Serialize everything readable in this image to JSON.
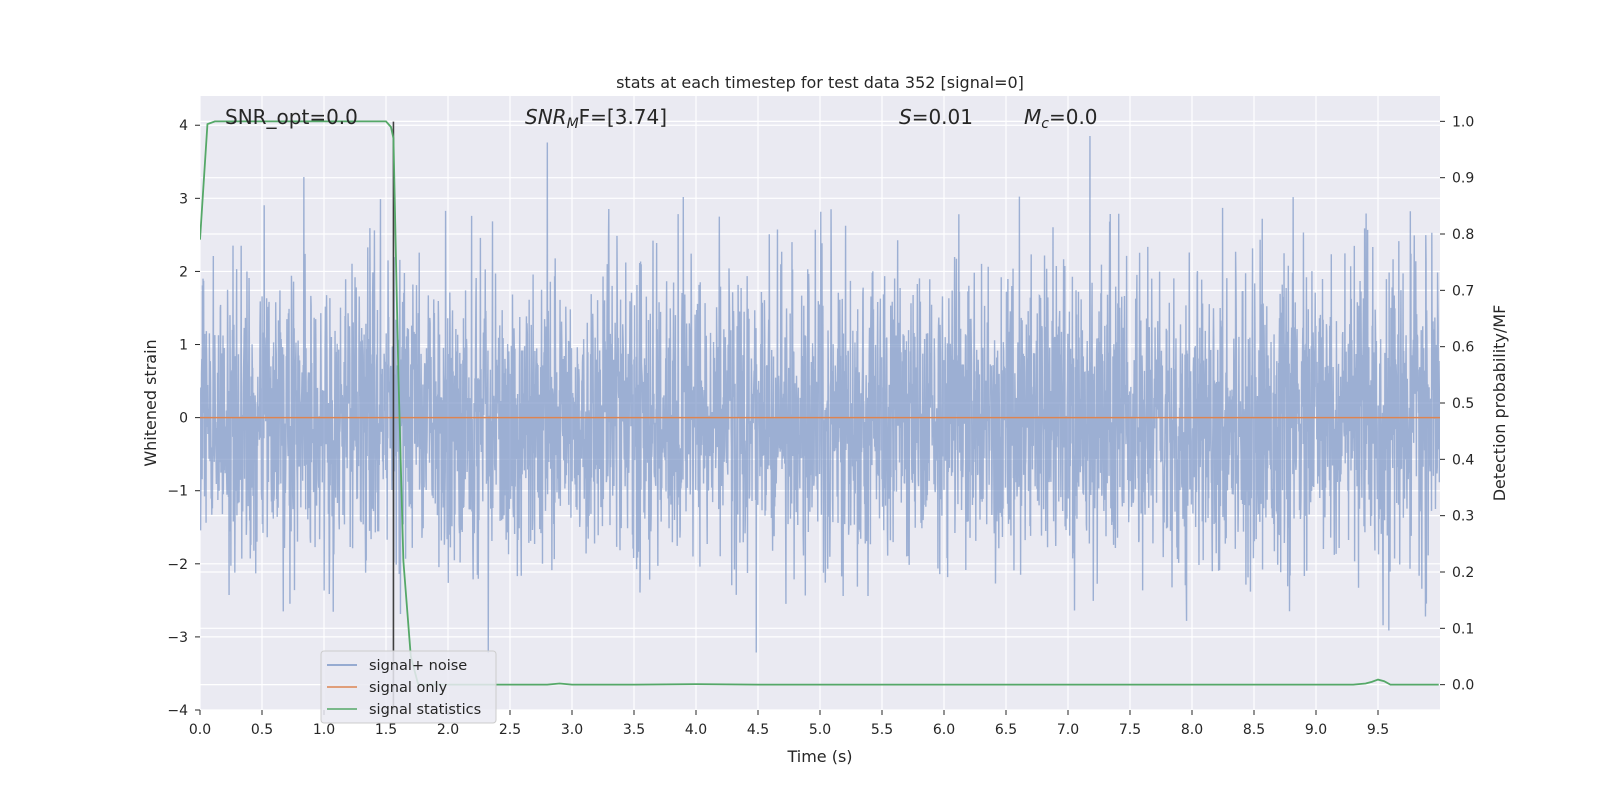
{
  "chart_data": {
    "type": "line",
    "title": "stats at each timestep for test data 352 [signal=0]",
    "xlabel": "Time (s)",
    "ylabel": "Whitened strain",
    "ylabel_right": "Detection probability/MF",
    "xlim": [
      0,
      10
    ],
    "ylim": [
      -4,
      4.4
    ],
    "ylim_right": [
      -0.045,
      1.045
    ],
    "x_ticks": [
      0.0,
      0.5,
      1.0,
      1.5,
      2.0,
      2.5,
      3.0,
      3.5,
      4.0,
      4.5,
      5.0,
      5.5,
      6.0,
      6.5,
      7.0,
      7.5,
      8.0,
      8.5,
      9.0,
      9.5
    ],
    "x_tick_labels": [
      "0.0",
      "0.5",
      "1.0",
      "1.5",
      "2.0",
      "2.5",
      "3.0",
      "3.5",
      "4.0",
      "4.5",
      "5.0",
      "5.5",
      "6.0",
      "6.5",
      "7.0",
      "7.5",
      "8.0",
      "8.5",
      "9.0",
      "9.5"
    ],
    "y_ticks": [
      -4,
      -3,
      -2,
      -1,
      0,
      1,
      2,
      3,
      4
    ],
    "y_tick_labels": [
      "−4",
      "−3",
      "−2",
      "−1",
      "0",
      "1",
      "2",
      "3",
      "4"
    ],
    "y_right_ticks": [
      0.0,
      0.1,
      0.2,
      0.3,
      0.4,
      0.5,
      0.6,
      0.7,
      0.8,
      0.9,
      1.0
    ],
    "y_right_tick_labels": [
      "0.0",
      "0.1",
      "0.2",
      "0.3",
      "0.4",
      "0.5",
      "0.6",
      "0.7",
      "0.8",
      "0.9",
      "1.0"
    ],
    "grid": true,
    "legend_position": "lower-left",
    "annotations": [
      {
        "id": "snr-opt",
        "text": "SNR_opt=0.0",
        "x": 0.19
      },
      {
        "id": "snr-mf",
        "text": "SNR",
        "sub": "M",
        "rest": "F=[3.74]",
        "x": 2.6
      },
      {
        "id": "s-stat",
        "text": "S",
        "rest": "=0.01",
        "x": 5.6
      },
      {
        "id": "mc",
        "text": "M",
        "sub": "c",
        "rest": "=0.0",
        "x": 6.6
      }
    ],
    "vertical_line_x": 1.56,
    "series": [
      {
        "name": "signal+ noise",
        "color": "#7b96c6",
        "kind": "noise",
        "samples": 4096,
        "approx_envelope": [
          -3.65,
          4.0
        ]
      },
      {
        "name": "signal only",
        "color": "#dd8452",
        "kind": "flat",
        "value": 0.0
      },
      {
        "name": "signal statistics",
        "color": "#55a868",
        "axis": "right",
        "x": [
          0.0,
          0.06,
          0.12,
          0.3,
          0.6,
          1.0,
          1.3,
          1.5,
          1.54,
          1.56,
          1.6,
          1.64,
          1.7,
          1.76,
          2.0,
          2.4,
          2.8,
          2.9,
          3.0,
          3.5,
          4.0,
          4.5,
          5.0,
          5.5,
          6.0,
          6.5,
          7.0,
          7.5,
          8.0,
          8.5,
          9.0,
          9.3,
          9.4,
          9.45,
          9.5,
          9.55,
          9.6,
          9.7,
          9.8,
          9.99
        ],
        "y": [
          0.79,
          0.995,
          1.0,
          1.0,
          1.0,
          1.0,
          1.0,
          1.0,
          0.99,
          0.97,
          0.55,
          0.22,
          0.05,
          0.0,
          0.0,
          0.0,
          0.0,
          0.002,
          0.0,
          0.0,
          0.001,
          0.0,
          0.0,
          0.0,
          0.0,
          0.0,
          0.0,
          0.0,
          0.0,
          0.0,
          0.0,
          0.0,
          0.002,
          0.005,
          0.009,
          0.006,
          0.0,
          0.0,
          0.0,
          0.0
        ]
      }
    ]
  }
}
